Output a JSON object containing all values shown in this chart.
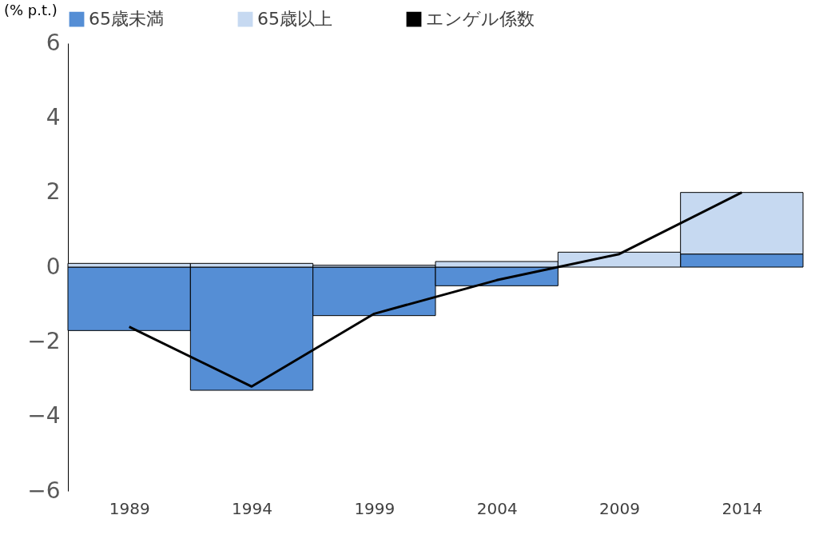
{
  "chart_data": {
    "type": "bar",
    "stacked": true,
    "ylabel": "(% p.t.)",
    "categories": [
      "1989",
      "1994",
      "1999",
      "2004",
      "2009",
      "2014"
    ],
    "series": [
      {
        "name": "65歳未満",
        "color": "#558ed5",
        "values": [
          -1.7,
          -3.3,
          -1.3,
          -0.5,
          null,
          0.35
        ]
      },
      {
        "name": "65歳以上",
        "color": "#c6d9f1",
        "values": [
          0.1,
          0.1,
          0.05,
          0.15,
          0.4,
          1.65
        ]
      },
      {
        "name": "エンゲル係数",
        "type": "line",
        "color": "#000000",
        "values": [
          -1.6,
          -3.2,
          -1.25,
          -0.35,
          0.35,
          2.0
        ]
      }
    ],
    "ylim": [
      -6,
      6
    ],
    "yticks": [
      -6,
      -4,
      -2,
      0,
      2,
      4,
      6
    ],
    "grid": false,
    "legend": "top"
  }
}
